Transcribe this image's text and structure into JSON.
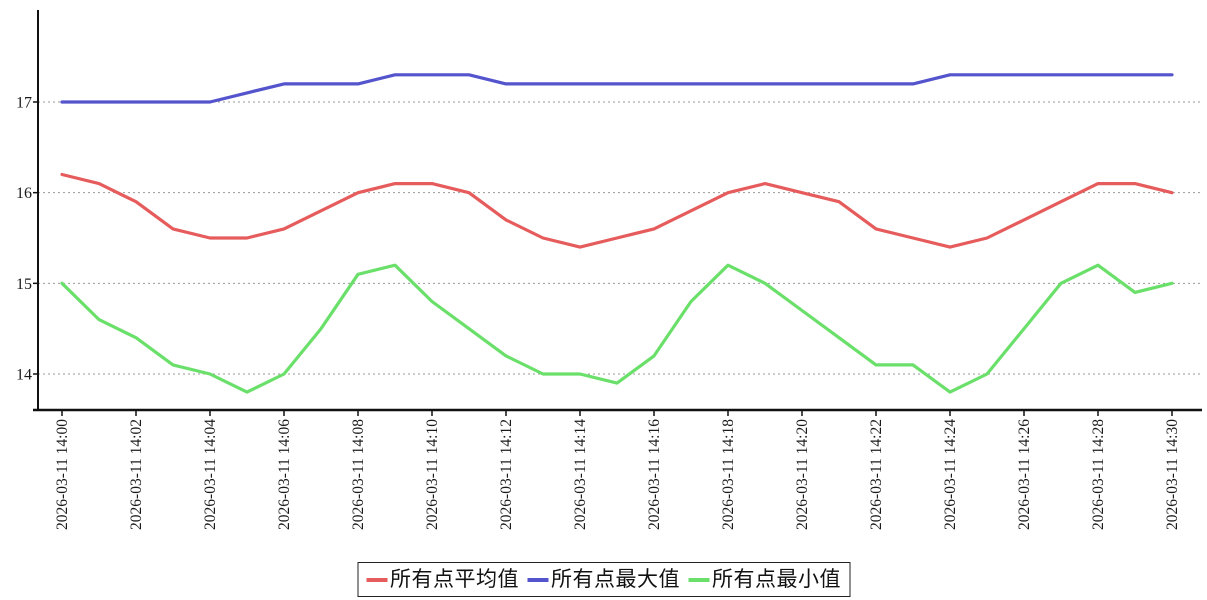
{
  "chart_data": {
    "type": "line",
    "title": "",
    "categories": [
      "2026-03-11 14:00",
      "2026-03-11 14:01",
      "2026-03-11 14:02",
      "2026-03-11 14:03",
      "2026-03-11 14:04",
      "2026-03-11 14:05",
      "2026-03-11 14:06",
      "2026-03-11 14:07",
      "2026-03-11 14:08",
      "2026-03-11 14:09",
      "2026-03-11 14:10",
      "2026-03-11 14:11",
      "2026-03-11 14:12",
      "2026-03-11 14:13",
      "2026-03-11 14:14",
      "2026-03-11 14:15",
      "2026-03-11 14:16",
      "2026-03-11 14:17",
      "2026-03-11 14:18",
      "2026-03-11 14:19",
      "2026-03-11 14:20",
      "2026-03-11 14:21",
      "2026-03-11 14:22",
      "2026-03-11 14:23",
      "2026-03-11 14:24",
      "2026-03-11 14:25",
      "2026-03-11 14:26",
      "2026-03-11 14:27",
      "2026-03-11 14:28",
      "2026-03-11 14:29",
      "2026-03-11 14:30"
    ],
    "x_tick_step": 2,
    "x_tick_label_rotation": -90,
    "yticks": [
      14,
      15,
      16,
      17
    ],
    "ylim": [
      13.6,
      18.0
    ],
    "grid": {
      "horizontal": true,
      "style": "dotted",
      "color": "#999999"
    },
    "axis_color": "#111111",
    "tick_label_color": "#1a1a1a",
    "legend_position": "bottom-center",
    "series": [
      {
        "name": "所有点平均值",
        "color": "#e65c5c",
        "values": [
          16.2,
          16.1,
          15.9,
          15.6,
          15.5,
          15.5,
          15.6,
          15.8,
          16.0,
          16.1,
          16.1,
          16.0,
          15.7,
          15.5,
          15.4,
          15.5,
          15.6,
          15.8,
          16.0,
          16.1,
          16.0,
          15.9,
          15.6,
          15.5,
          15.4,
          15.5,
          15.7,
          15.9,
          16.1,
          16.1,
          16.0
        ]
      },
      {
        "name": "所有点最大值",
        "color": "#5454cd",
        "values": [
          17.0,
          17.0,
          17.0,
          17.0,
          17.0,
          17.1,
          17.2,
          17.2,
          17.2,
          17.3,
          17.3,
          17.3,
          17.2,
          17.2,
          17.2,
          17.2,
          17.2,
          17.2,
          17.2,
          17.2,
          17.2,
          17.2,
          17.2,
          17.2,
          17.3,
          17.3,
          17.3,
          17.3,
          17.3,
          17.3,
          17.3
        ]
      },
      {
        "name": "所有点最小值",
        "color": "#6ae06a",
        "values": [
          15.0,
          14.6,
          14.4,
          14.1,
          14.0,
          13.8,
          14.0,
          14.5,
          15.1,
          15.2,
          14.8,
          14.5,
          14.2,
          14.0,
          14.0,
          13.9,
          14.2,
          14.8,
          15.2,
          15.0,
          14.7,
          14.4,
          14.1,
          14.1,
          13.8,
          14.0,
          14.5,
          15.0,
          15.2,
          14.9,
          15.0
        ]
      }
    ]
  }
}
